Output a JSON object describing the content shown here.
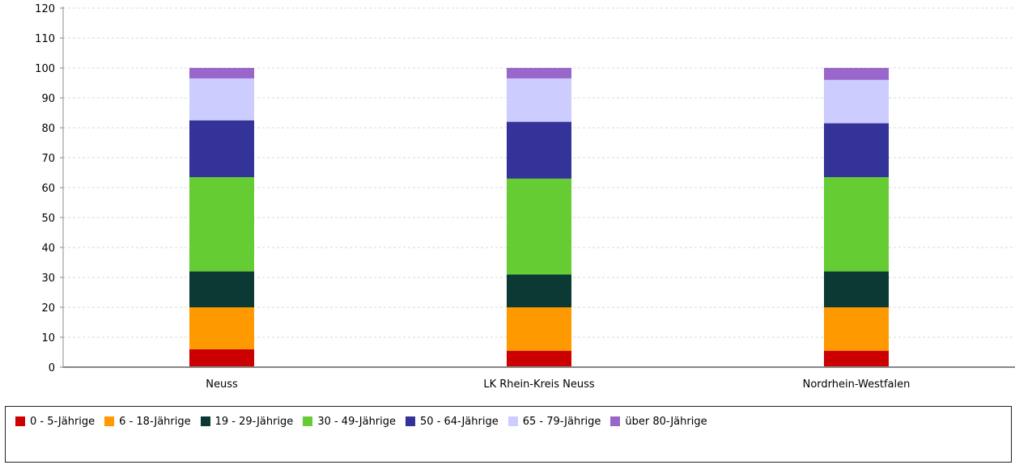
{
  "chart_data": {
    "type": "bar",
    "stacked": true,
    "categories": [
      "Neuss",
      "LK Rhein-Kreis Neuss",
      "Nordrhein-Westfalen"
    ],
    "ylim": [
      0,
      120
    ],
    "yticks": [
      0,
      10,
      20,
      30,
      40,
      50,
      60,
      70,
      80,
      90,
      100,
      110,
      120
    ],
    "grid": true,
    "legend_position": "bottom",
    "series": [
      {
        "name": "0 - 5-Jährige",
        "color": "#cc0000",
        "values": [
          6,
          5.5,
          5.5
        ]
      },
      {
        "name": "6 - 18-Jährige",
        "color": "#ff9900",
        "values": [
          14,
          14.5,
          14.5
        ]
      },
      {
        "name": "19 - 29-Jährige",
        "color": "#0a3a33",
        "values": [
          12,
          11,
          12
        ]
      },
      {
        "name": "30 - 49-Jährige",
        "color": "#66cc33",
        "values": [
          31.5,
          32,
          31.5
        ]
      },
      {
        "name": "50 - 64-Jährige",
        "color": "#333399",
        "values": [
          19,
          19,
          18
        ]
      },
      {
        "name": "65 - 79-Jährige",
        "color": "#ccccff",
        "values": [
          14,
          14.5,
          14.5
        ]
      },
      {
        "name": "über 80-Jährige",
        "color": "#9966cc",
        "values": [
          3.5,
          3.5,
          4
        ]
      }
    ]
  }
}
